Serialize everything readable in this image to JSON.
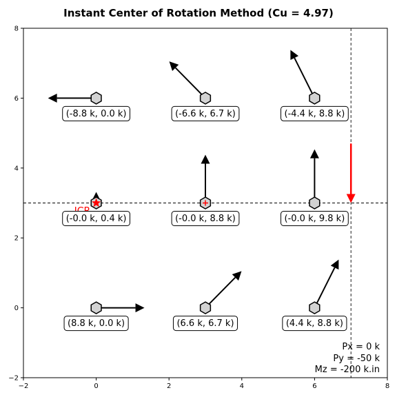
{
  "chart_data": {
    "type": "scatter",
    "title": "Instant Center of Rotation Method (Cu = 4.97)",
    "xlim": [
      -2,
      8
    ],
    "ylim": [
      -2,
      8
    ],
    "x_ticks": [
      "−2",
      "0",
      "2",
      "4",
      "6",
      "8"
    ],
    "y_ticks": [
      "−2",
      "0",
      "2",
      "4",
      "6",
      "8"
    ],
    "grid": false,
    "bolts": [
      {
        "x": 0,
        "y": 6,
        "fx": -8.8,
        "fy": 0.0,
        "label": "(-8.8 k, 0.0 k)"
      },
      {
        "x": 3,
        "y": 6,
        "fx": -6.6,
        "fy": 6.7,
        "label": "(-6.6 k, 6.7 k)"
      },
      {
        "x": 6,
        "y": 6,
        "fx": -4.4,
        "fy": 8.8,
        "label": "(-4.4 k, 8.8 k)"
      },
      {
        "x": 0,
        "y": 3,
        "fx": -0.0,
        "fy": 0.4,
        "label": "(-0.0 k, 0.4 k)"
      },
      {
        "x": 3,
        "y": 3,
        "fx": -0.0,
        "fy": 8.8,
        "label": "(-0.0 k, 8.8 k)"
      },
      {
        "x": 6,
        "y": 3,
        "fx": -0.0,
        "fy": 9.8,
        "label": "(-0.0 k, 9.8 k)"
      },
      {
        "x": 0,
        "y": 0,
        "fx": 8.8,
        "fy": 0.0,
        "label": "(8.8 k, 0.0 k)"
      },
      {
        "x": 3,
        "y": 0,
        "fx": 6.6,
        "fy": 6.7,
        "label": "(6.6 k, 6.7 k)"
      },
      {
        "x": 6,
        "y": 0,
        "fx": 4.4,
        "fy": 8.8,
        "label": "(4.4 k, 8.8 k)"
      }
    ],
    "icr": {
      "x": 0,
      "y": 3,
      "label": "ICR"
    },
    "load_lines": {
      "x": 7,
      "y": 3
    },
    "applied_load": {
      "x": 7,
      "y_start": 4.7,
      "y_end": 3
    },
    "load_text": [
      "Px = 0 k",
      "Py = -50 k",
      "Mz = -200 k.in"
    ],
    "colors": {
      "bolt_fill": "#d3d3d3",
      "arrow": "#000000",
      "icr": "#ff0000",
      "load": "#ff0000"
    }
  }
}
